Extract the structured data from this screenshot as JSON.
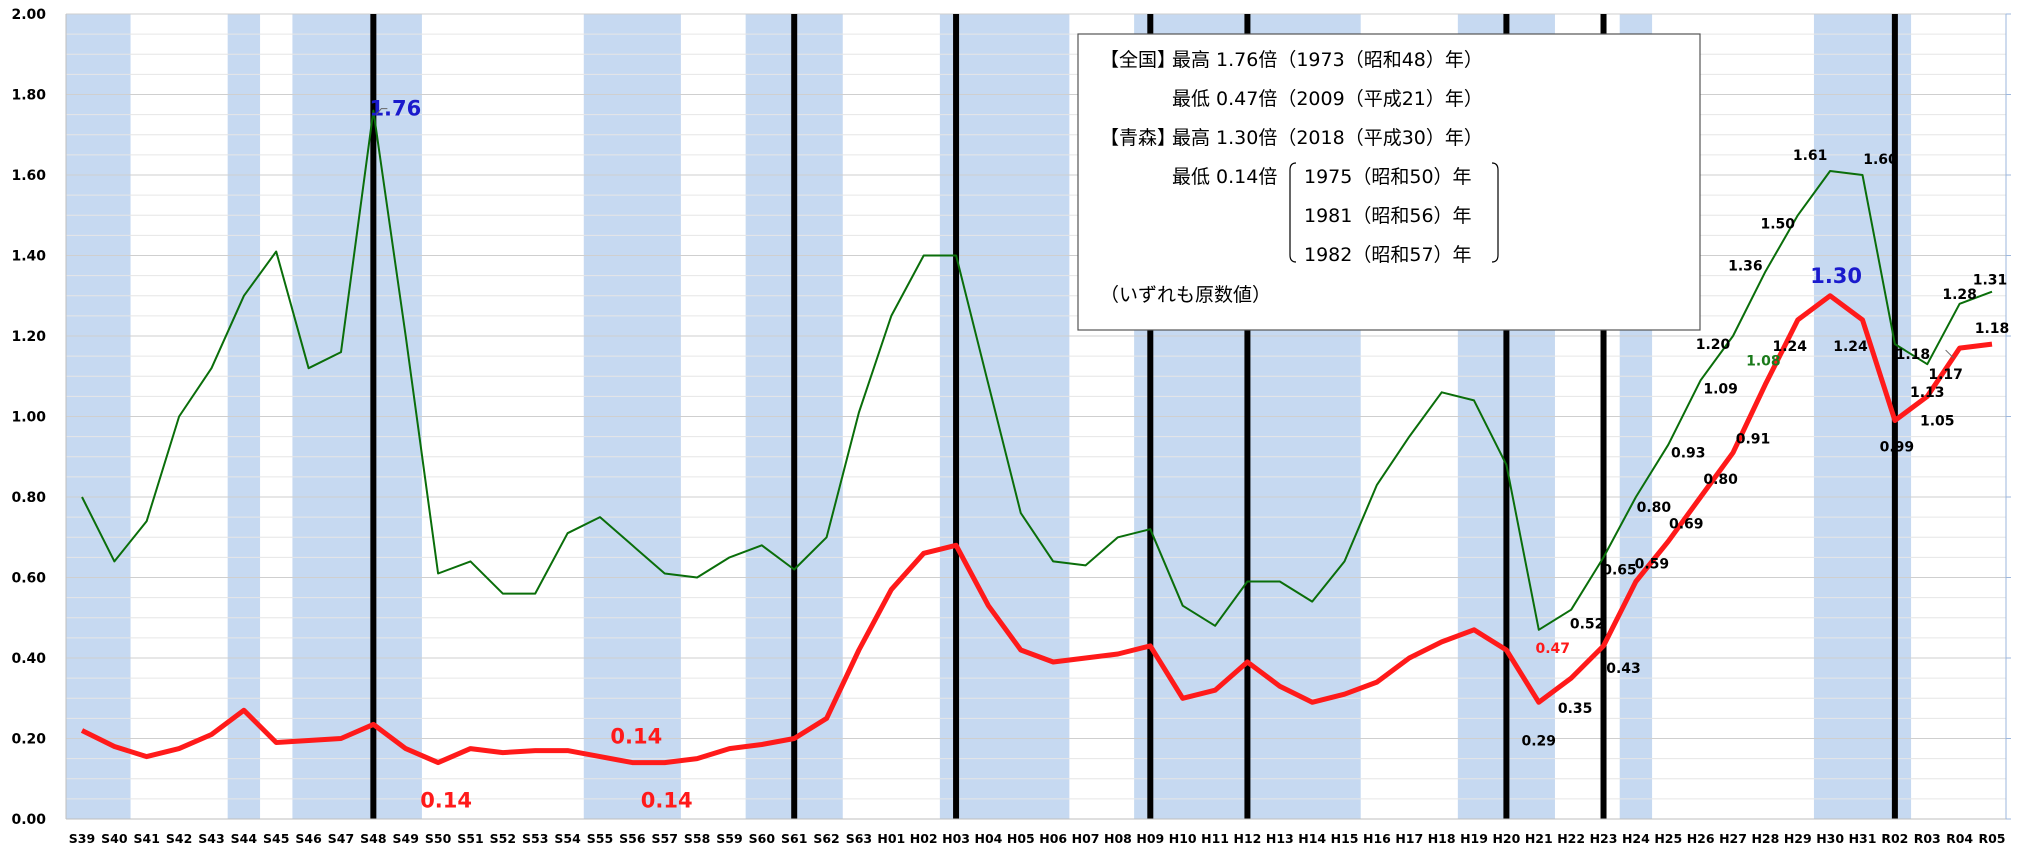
{
  "chart_data": {
    "type": "line",
    "title": "",
    "xlabel": "",
    "ylabel": "",
    "ylim": [
      0,
      2
    ],
    "yticks": [
      "0.00",
      "0.20",
      "0.40",
      "0.60",
      "0.80",
      "1.00",
      "1.20",
      "1.40",
      "1.60",
      "1.80",
      "2.00"
    ],
    "categories": [
      "S39",
      "S40",
      "S41",
      "S42",
      "S43",
      "S44",
      "S45",
      "S46",
      "S47",
      "S48",
      "S49",
      "S50",
      "S51",
      "S52",
      "S53",
      "S54",
      "S55",
      "S56",
      "S57",
      "S58",
      "S59",
      "S60",
      "S61",
      "S62",
      "S63",
      "H01",
      "H02",
      "H03",
      "H04",
      "H05",
      "H06",
      "H07",
      "H08",
      "H09",
      "H10",
      "H11",
      "H12",
      "H13",
      "H14",
      "H15",
      "H16",
      "H17",
      "H18",
      "H19",
      "H20",
      "H21",
      "H22",
      "H23",
      "H24",
      "H25",
      "H26",
      "H27",
      "H28",
      "H29",
      "H30",
      "H31",
      "R02",
      "R03",
      "R04",
      "R05"
    ],
    "series": [
      {
        "key": "national",
        "color": "#0a6e0a",
        "values": [
          0.8,
          0.64,
          0.74,
          1.0,
          1.12,
          1.3,
          1.41,
          1.12,
          1.16,
          1.76,
          1.2,
          0.61,
          0.64,
          0.56,
          0.56,
          0.71,
          0.75,
          0.68,
          0.61,
          0.6,
          0.65,
          0.68,
          0.62,
          0.7,
          1.01,
          1.25,
          1.4,
          1.4,
          1.08,
          0.76,
          0.64,
          0.63,
          0.7,
          0.72,
          0.53,
          0.48,
          0.59,
          0.59,
          0.54,
          0.64,
          0.83,
          0.95,
          1.06,
          1.04,
          0.88,
          0.47,
          0.52,
          0.65,
          0.8,
          0.93,
          1.09,
          1.2,
          1.36,
          1.5,
          1.61,
          1.6,
          1.18,
          1.13,
          1.28,
          1.31
        ]
      },
      {
        "key": "aomori",
        "color": "#ff1a1a",
        "values": [
          0.22,
          0.18,
          0.155,
          0.175,
          0.21,
          0.27,
          0.19,
          0.195,
          0.2,
          0.235,
          0.175,
          0.14,
          0.175,
          0.165,
          0.17,
          0.17,
          0.155,
          0.14,
          0.14,
          0.15,
          0.175,
          0.185,
          0.2,
          0.25,
          0.42,
          0.57,
          0.66,
          0.68,
          0.53,
          0.42,
          0.39,
          0.4,
          0.41,
          0.43,
          0.3,
          0.32,
          0.39,
          0.33,
          0.29,
          0.31,
          0.34,
          0.4,
          0.44,
          0.47,
          0.42,
          0.29,
          0.35,
          0.43,
          0.59,
          0.69,
          0.8,
          0.91,
          1.08,
          1.24,
          1.3,
          1.24,
          0.99,
          1.05,
          1.17,
          1.18
        ]
      }
    ],
    "recession_bands": [
      [
        0,
        1
      ],
      [
        5,
        5
      ],
      [
        7,
        10
      ],
      [
        16,
        18
      ],
      [
        21,
        23
      ],
      [
        27,
        30
      ],
      [
        33,
        39
      ],
      [
        43,
        45
      ],
      [
        48,
        48
      ],
      [
        54,
        56
      ]
    ],
    "vertical_lines": [
      9,
      22,
      27,
      33,
      36,
      44,
      47,
      56
    ],
    "data_labels": [
      {
        "series": "national",
        "index": 9,
        "text": "1.76",
        "color": "#1a1acc",
        "big": true
      },
      {
        "series": "national",
        "index": 45,
        "text": "0.47",
        "color": "#ff1a1a"
      },
      {
        "series": "national",
        "index": 46,
        "text": "0.52",
        "color": "#000000"
      },
      {
        "series": "national",
        "index": 47,
        "text": "0.65",
        "color": "#000000"
      },
      {
        "series": "national",
        "index": 48,
        "text": "0.80",
        "color": "#000000"
      },
      {
        "series": "national",
        "index": 49,
        "text": "0.93",
        "color": "#000000"
      },
      {
        "series": "national",
        "index": 50,
        "text": "1.09",
        "color": "#000000"
      },
      {
        "series": "national",
        "index": 51,
        "text": "1.20",
        "color": "#000000"
      },
      {
        "series": "national",
        "index": 52,
        "text": "1.36",
        "color": "#000000"
      },
      {
        "series": "national",
        "index": 53,
        "text": "1.50",
        "color": "#000000"
      },
      {
        "series": "national",
        "index": 54,
        "text": "1.61",
        "color": "#000000"
      },
      {
        "series": "national",
        "index": 55,
        "text": "1.60",
        "color": "#000000"
      },
      {
        "series": "national",
        "index": 56,
        "text": "1.18",
        "color": "#000000"
      },
      {
        "series": "national",
        "index": 57,
        "text": "1.13",
        "color": "#000000"
      },
      {
        "series": "national",
        "index": 58,
        "text": "1.28",
        "color": "#000000"
      },
      {
        "series": "national",
        "index": 59,
        "text": "1.31",
        "color": "#000000"
      },
      {
        "series": "aomori",
        "index": 11,
        "text": "0.14",
        "color": "#ff1a1a",
        "big": true
      },
      {
        "series": "aomori",
        "index": 17,
        "text": "0.14",
        "color": "#ff1a1a",
        "big": true
      },
      {
        "series": "aomori",
        "index": 18,
        "text": "0.14",
        "color": "#ff1a1a",
        "big": true
      },
      {
        "series": "aomori",
        "index": 45,
        "text": "0.29",
        "color": "#000000"
      },
      {
        "series": "aomori",
        "index": 46,
        "text": "0.35",
        "color": "#000000"
      },
      {
        "series": "aomori",
        "index": 47,
        "text": "0.43",
        "color": "#000000"
      },
      {
        "series": "aomori",
        "index": 48,
        "text": "0.59",
        "color": "#000000"
      },
      {
        "series": "aomori",
        "index": 49,
        "text": "0.69",
        "color": "#000000"
      },
      {
        "series": "aomori",
        "index": 50,
        "text": "0.80",
        "color": "#000000"
      },
      {
        "series": "aomori",
        "index": 51,
        "text": "0.91",
        "color": "#000000"
      },
      {
        "series": "aomori",
        "index": 52,
        "text": "1.08",
        "color": "#1a7a1a"
      },
      {
        "series": "aomori",
        "index": 53,
        "text": "1.24",
        "color": "#000000"
      },
      {
        "series": "aomori",
        "index": 54,
        "text": "1.30",
        "color": "#1a1acc",
        "big": true
      },
      {
        "series": "aomori",
        "index": 55,
        "text": "1.24",
        "color": "#000000"
      },
      {
        "series": "aomori",
        "index": 56,
        "text": "0.99",
        "color": "#000000"
      },
      {
        "series": "aomori",
        "index": 57,
        "text": "1.05",
        "color": "#000000"
      },
      {
        "series": "aomori",
        "index": 58,
        "text": "1.17",
        "color": "#000000"
      },
      {
        "series": "aomori",
        "index": 59,
        "text": "1.18",
        "color": "#000000"
      }
    ],
    "grid": true,
    "band_color": "#c6d9f1"
  },
  "annotation_box": {
    "national_label": "【全国】",
    "national_max": "最高 1.76倍（1973（昭和48）年）",
    "national_min": "最低 0.47倍（2009（平成21）年）",
    "aomori_label": "【青森】",
    "aomori_max": "最高 1.30倍（2018（平成30）年）",
    "aomori_min_prefix": "最低 0.14倍",
    "aomori_min_years": [
      "1975（昭和50）年",
      "1981（昭和56）年",
      "1982（昭和57）年"
    ],
    "footnote": "（いずれも原数値）"
  }
}
